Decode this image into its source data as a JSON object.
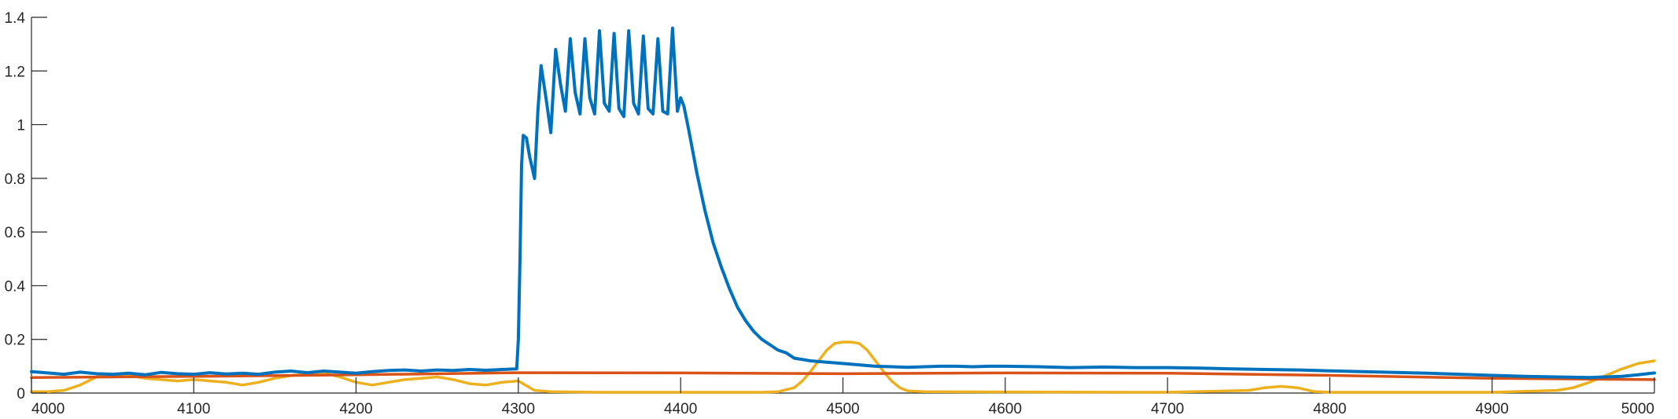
{
  "chart_data": {
    "type": "line",
    "title": "",
    "xlabel": "",
    "ylabel": "",
    "xlim": [
      4000,
      5000
    ],
    "ylim": [
      0,
      1.4
    ],
    "xticks": [
      "4000",
      "4100",
      "4200",
      "4300",
      "4400",
      "4500",
      "4600",
      "4700",
      "4800",
      "4900",
      "5000"
    ],
    "yticks": [
      "0",
      "0.2",
      "0.4",
      "0.6",
      "0.8",
      "1",
      "1.2",
      "1.4"
    ],
    "grid": false,
    "legend": "none",
    "series": [
      {
        "color": "#0072BD",
        "x": [
          4000,
          4010,
          4020,
          4030,
          4040,
          4050,
          4060,
          4070,
          4080,
          4090,
          4100,
          4110,
          4120,
          4130,
          4140,
          4150,
          4160,
          4170,
          4180,
          4190,
          4200,
          4210,
          4220,
          4230,
          4240,
          4250,
          4260,
          4270,
          4280,
          4290,
          4299,
          4300,
          4301,
          4302,
          4303,
          4305,
          4307,
          4310,
          4312,
          4314,
          4317,
          4320,
          4323,
          4326,
          4329,
          4332,
          4335,
          4338,
          4341,
          4344,
          4347,
          4350,
          4353,
          4356,
          4359,
          4362,
          4365,
          4368,
          4371,
          4374,
          4377,
          4380,
          4383,
          4386,
          4389,
          4392,
          4395,
          4398,
          4400,
          4402,
          4405,
          4410,
          4415,
          4420,
          4425,
          4430,
          4435,
          4440,
          4445,
          4450,
          4455,
          4460,
          4465,
          4470,
          4480,
          4490,
          4500,
          4510,
          4520,
          4530,
          4540,
          4550,
          4560,
          4570,
          4580,
          4590,
          4600,
          4620,
          4640,
          4660,
          4680,
          4700,
          4720,
          4740,
          4760,
          4780,
          4800,
          4820,
          4840,
          4860,
          4880,
          4900,
          4920,
          4940,
          4960,
          4970,
          4980,
          4990,
          5000
        ],
        "y": [
          0.08,
          0.075,
          0.07,
          0.078,
          0.072,
          0.07,
          0.074,
          0.068,
          0.077,
          0.072,
          0.07,
          0.076,
          0.071,
          0.074,
          0.07,
          0.078,
          0.082,
          0.076,
          0.082,
          0.078,
          0.074,
          0.08,
          0.084,
          0.086,
          0.082,
          0.086,
          0.084,
          0.088,
          0.085,
          0.088,
          0.09,
          0.2,
          0.5,
          0.85,
          0.96,
          0.95,
          0.88,
          0.8,
          1.05,
          1.22,
          1.1,
          0.97,
          1.28,
          1.15,
          1.05,
          1.32,
          1.12,
          1.04,
          1.32,
          1.1,
          1.04,
          1.35,
          1.08,
          1.05,
          1.34,
          1.06,
          1.03,
          1.35,
          1.08,
          1.04,
          1.33,
          1.06,
          1.04,
          1.32,
          1.05,
          1.04,
          1.36,
          1.05,
          1.1,
          1.07,
          0.98,
          0.82,
          0.68,
          0.56,
          0.47,
          0.39,
          0.32,
          0.27,
          0.23,
          0.2,
          0.18,
          0.16,
          0.15,
          0.13,
          0.12,
          0.115,
          0.11,
          0.105,
          0.1,
          0.098,
          0.096,
          0.098,
          0.1,
          0.1,
          0.098,
          0.1,
          0.1,
          0.098,
          0.095,
          0.097,
          0.095,
          0.095,
          0.093,
          0.09,
          0.088,
          0.086,
          0.083,
          0.08,
          0.077,
          0.074,
          0.07,
          0.066,
          0.062,
          0.06,
          0.058,
          0.06,
          0.062,
          0.068,
          0.075
        ]
      },
      {
        "color": "#D95319",
        "x": [
          4000,
          4100,
          4200,
          4300,
          4400,
          4500,
          4600,
          4700,
          4800,
          4900,
          5000
        ],
        "y": [
          0.058,
          0.062,
          0.068,
          0.076,
          0.075,
          0.072,
          0.075,
          0.074,
          0.066,
          0.055,
          0.05
        ]
      },
      {
        "color": "#EDB120",
        "x": [
          4000,
          4010,
          4020,
          4030,
          4040,
          4050,
          4060,
          4070,
          4080,
          4090,
          4100,
          4110,
          4120,
          4130,
          4140,
          4150,
          4160,
          4170,
          4180,
          4190,
          4200,
          4210,
          4220,
          4230,
          4240,
          4250,
          4260,
          4270,
          4280,
          4290,
          4300,
          4310,
          4320,
          4350,
          4400,
          4450,
          4460,
          4470,
          4475,
          4480,
          4485,
          4490,
          4495,
          4500,
          4505,
          4510,
          4515,
          4520,
          4525,
          4530,
          4535,
          4540,
          4550,
          4600,
          4700,
          4750,
          4760,
          4770,
          4780,
          4790,
          4800,
          4900,
          4940,
          4950,
          4960,
          4970,
          4980,
          4990,
          5000
        ],
        "y": [
          0.005,
          0.005,
          0.01,
          0.03,
          0.06,
          0.07,
          0.065,
          0.055,
          0.05,
          0.045,
          0.05,
          0.045,
          0.04,
          0.03,
          0.04,
          0.055,
          0.065,
          0.07,
          0.075,
          0.06,
          0.04,
          0.03,
          0.04,
          0.05,
          0.055,
          0.06,
          0.05,
          0.035,
          0.03,
          0.04,
          0.045,
          0.01,
          0.005,
          0.003,
          0.003,
          0.003,
          0.005,
          0.02,
          0.045,
          0.08,
          0.12,
          0.16,
          0.185,
          0.19,
          0.19,
          0.185,
          0.16,
          0.12,
          0.08,
          0.045,
          0.02,
          0.008,
          0.005,
          0.004,
          0.003,
          0.01,
          0.02,
          0.025,
          0.02,
          0.006,
          0.003,
          0.003,
          0.01,
          0.02,
          0.04,
          0.065,
          0.09,
          0.11,
          0.12
        ]
      }
    ]
  }
}
